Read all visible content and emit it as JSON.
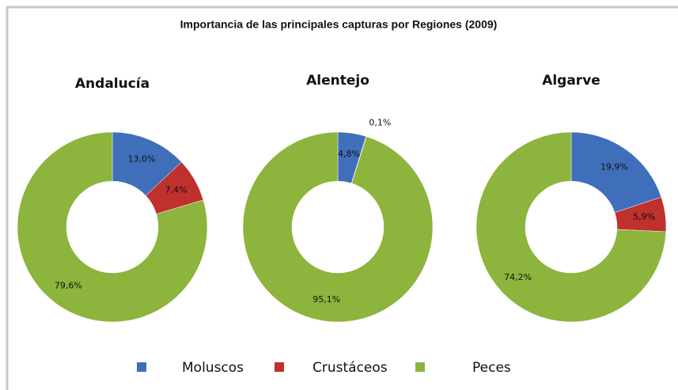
{
  "title": "Importancia de las principales capturas por Regiones (2009)",
  "categories": [
    "Moluscos",
    "Crustáceos",
    "Peces"
  ],
  "colors": [
    "#3f6fba",
    "#c0302d",
    "#8db43c"
  ],
  "chart_data": [
    {
      "type": "pie",
      "title": "Andalucía",
      "values": [
        13.0,
        7.4,
        79.6
      ],
      "value_labels": [
        "13,0%",
        "7,4%",
        "79,6%"
      ]
    },
    {
      "type": "pie",
      "title": "Alentejo",
      "values": [
        4.8,
        0.1,
        95.1
      ],
      "value_labels": [
        "4,8%",
        "0,1%",
        "95,1%"
      ]
    },
    {
      "type": "pie",
      "title": "Algarve",
      "values": [
        19.9,
        5.9,
        74.2
      ],
      "value_labels": [
        "19,9%",
        "5,9%",
        "74,2%"
      ]
    }
  ]
}
